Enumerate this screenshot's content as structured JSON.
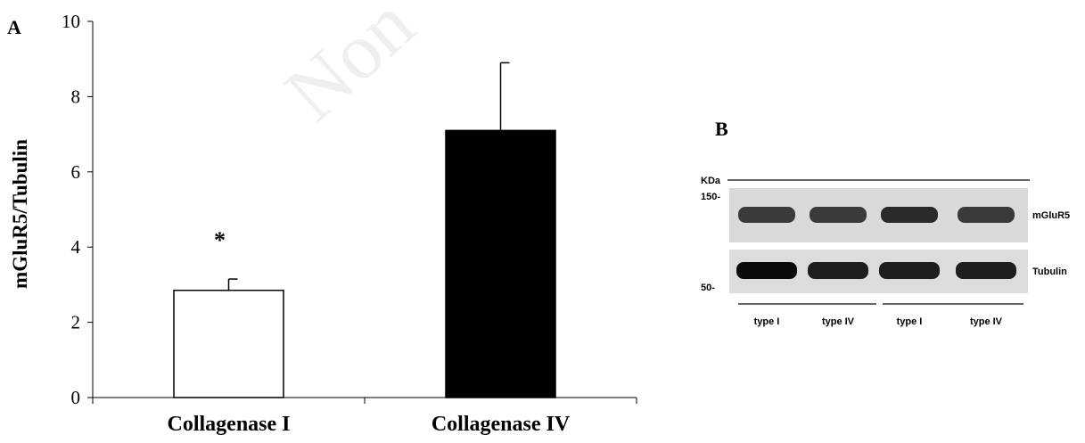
{
  "panels": {
    "a_label": "A",
    "b_label": "B"
  },
  "watermark": "Non",
  "chart_data": {
    "type": "bar",
    "categories": [
      "Collagenase I",
      "Collagenase IV"
    ],
    "values": [
      2.85,
      7.1
    ],
    "errors": [
      0.3,
      1.8
    ],
    "ylabel": "mGluR5/Tubulin",
    "ylim": [
      0,
      10
    ],
    "yticks": [
      "0",
      "2",
      "4",
      "6",
      "8",
      "10"
    ],
    "bar_colors": [
      "#ffffff",
      "#000000"
    ],
    "significance": [
      {
        "category": "Collagenase I",
        "symbol": "*"
      }
    ],
    "grid": false,
    "legend": "none"
  },
  "blot": {
    "kda_label": "KDa",
    "markers": [
      "150-",
      "50-"
    ],
    "band_labels": [
      "mGluR5",
      "Tubulin"
    ],
    "lanes": [
      "type I",
      "type IV",
      "type I",
      "type IV"
    ]
  }
}
